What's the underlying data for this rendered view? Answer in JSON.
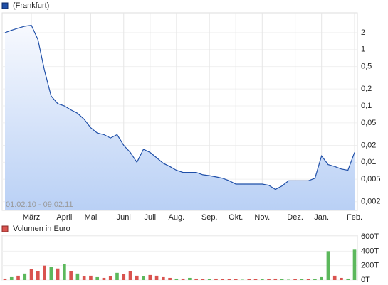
{
  "chart_data": [
    {
      "type": "line",
      "legend": "(Frankfurt)",
      "period": "01.02.10 - 09.02.11",
      "color": "#1f4fa8",
      "log_scale": true,
      "grid": true,
      "categories": [
        null,
        null,
        null,
        null,
        "März",
        null,
        null,
        null,
        null,
        "April",
        null,
        null,
        null,
        "Mai",
        null,
        null,
        null,
        null,
        "Juni",
        null,
        null,
        null,
        "Juli",
        null,
        null,
        null,
        "Aug.",
        null,
        null,
        null,
        null,
        "Sep.",
        null,
        null,
        null,
        "Okt.",
        null,
        null,
        null,
        "Nov.",
        null,
        null,
        null,
        null,
        "Dez.",
        null,
        null,
        null,
        "Jan.",
        null,
        null,
        null,
        null,
        "Feb."
      ],
      "values": [
        2.0,
        2.2,
        2.4,
        2.6,
        2.7,
        1.5,
        0.42,
        0.15,
        0.11,
        0.1,
        0.085,
        0.074,
        0.058,
        0.041,
        0.033,
        0.031,
        0.027,
        0.031,
        0.02,
        0.015,
        0.01,
        0.017,
        0.015,
        0.012,
        0.0096,
        0.0084,
        0.0072,
        0.0066,
        0.0066,
        0.0066,
        0.006,
        0.0058,
        0.0055,
        0.0052,
        0.0047,
        0.0041,
        0.0041,
        0.0041,
        0.0041,
        0.0041,
        0.0039,
        0.0033,
        0.0038,
        0.0047,
        0.0047,
        0.0047,
        0.0047,
        0.0052,
        0.013,
        0.0091,
        0.0084,
        0.0076,
        0.0072,
        0.015
      ],
      "ylim": [
        0.0014,
        4.5
      ],
      "yticks": [
        2,
        1,
        {
          "value": 0.5,
          "label": "0,5"
        },
        {
          "value": 0.2,
          "label": "0,2"
        },
        {
          "value": 0.1,
          "label": "0,1"
        },
        {
          "value": 0.05,
          "label": "0,05"
        },
        {
          "value": 0.02,
          "label": "0,02"
        },
        {
          "value": 0.01,
          "label": "0,01"
        },
        {
          "value": 0.005,
          "label": "0,005"
        },
        {
          "value": 0.002,
          "label": "0,002"
        }
      ]
    },
    {
      "type": "bar",
      "legend": "Volumen in Euro",
      "color": "#d9534f",
      "colors": [
        "#d9534f",
        "#5cb85c",
        "#d9534f",
        "#5cb85c",
        "#d9534f",
        "#d9534f",
        "#d9534f",
        "#5cb85c",
        "#d9534f",
        "#5cb85c",
        "#d9534f",
        "#5cb85c",
        "#d9534f",
        "#d9534f",
        "#5cb85c",
        "#d9534f",
        "#d9534f",
        "#5cb85c",
        "#d9534f",
        "#d9534f",
        "#d9534f",
        "#5cb85c",
        "#d9534f",
        "#d9534f",
        "#d9534f",
        "#d9534f",
        "#5cb85c",
        "#d9534f",
        "#5cb85c",
        "#d9534f",
        "#d9534f",
        "#5cb85c",
        "#d9534f",
        "#d9534f",
        "#d9534f",
        "#d9534f",
        "#5cb85c",
        "#d9534f",
        "#d9534f",
        "#5cb85c",
        "#d9534f",
        "#d9534f",
        "#5cb85c",
        "#5cb85c",
        "#d9534f",
        "#5cb85c",
        "#d9534f",
        "#5cb85c",
        "#5cb85c",
        "#5cb85c",
        "#d9534f",
        "#d9534f",
        "#5cb85c",
        "#5cb85c"
      ],
      "values": [
        20000,
        40000,
        60000,
        90000,
        150000,
        120000,
        200000,
        180000,
        160000,
        220000,
        120000,
        90000,
        50000,
        60000,
        40000,
        30000,
        50000,
        100000,
        80000,
        120000,
        60000,
        50000,
        70000,
        60000,
        40000,
        30000,
        20000,
        20000,
        30000,
        20000,
        15000,
        10000,
        20000,
        10000,
        10000,
        10000,
        5000,
        10000,
        15000,
        10000,
        10000,
        20000,
        10000,
        5000,
        10000,
        10000,
        10000,
        10000,
        40000,
        400000,
        60000,
        30000,
        20000,
        420000
      ],
      "ylim": [
        0,
        620000
      ],
      "yticks": [
        {
          "value": 0,
          "label": "0T"
        },
        {
          "value": 200000,
          "label": "200T"
        },
        {
          "value": 400000,
          "label": "400T"
        },
        {
          "value": 600000,
          "label": "600T"
        }
      ]
    }
  ]
}
